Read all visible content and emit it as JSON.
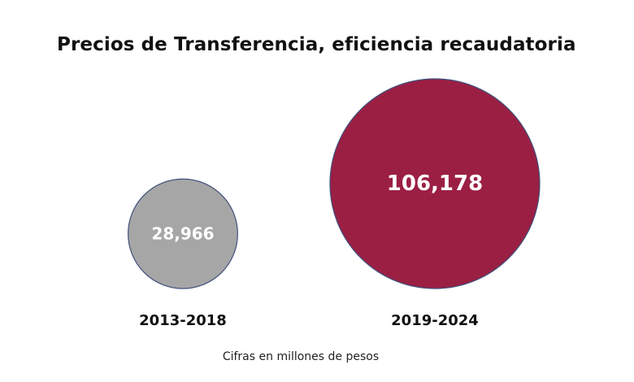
{
  "chart_data": {
    "type": "bubble",
    "title": "Precios de Transferencia, eficiencia recaudatoria",
    "categories": [
      "2013-2018",
      "2019-2024"
    ],
    "values": [
      28966,
      106178
    ],
    "value_labels": [
      "28,966",
      "106,178"
    ],
    "colors": [
      "#a6a6a6",
      "#9b1f43"
    ],
    "note": "Cifras en millones de pesos",
    "legend": "none",
    "grid": false
  }
}
